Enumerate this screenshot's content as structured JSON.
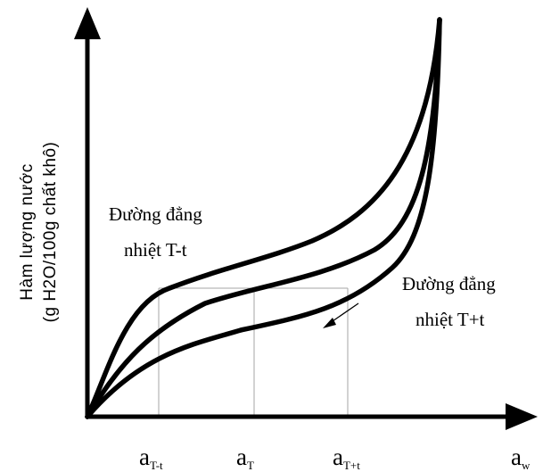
{
  "chart_data": {
    "type": "line",
    "title": "",
    "xlabel": "",
    "ylabel_lines": [
      "Hàm lượng nước",
      "(g H2O/100g chất khô)"
    ],
    "x_axis_label": {
      "main": "a",
      "sub": "w"
    },
    "x_ticks": [
      {
        "main": "a",
        "sub": "T-t"
      },
      {
        "main": "a",
        "sub": "T"
      },
      {
        "main": "a",
        "sub": "T+t"
      }
    ],
    "annotations": {
      "upper": [
        "Đường đẳng",
        "nhiệt T-t"
      ],
      "lower": [
        "Đường đẳng",
        "nhiệt T+t"
      ]
    },
    "series": [
      {
        "key": "upper",
        "label": "Đường đẳng nhiệt T-t"
      },
      {
        "key": "middle",
        "label": ""
      },
      {
        "key": "lower",
        "label": "Đường đẳng nhiệt T+t"
      }
    ],
    "axes_arrows": true,
    "reference_lines": {
      "horizontal": true,
      "verticals": [
        "a_T-t",
        "a_T",
        "a_T+t"
      ]
    },
    "grid": false,
    "legend": "none",
    "colors": {
      "curve": "#000000",
      "guide": "#a6a6a6",
      "axis": "#000000"
    }
  }
}
